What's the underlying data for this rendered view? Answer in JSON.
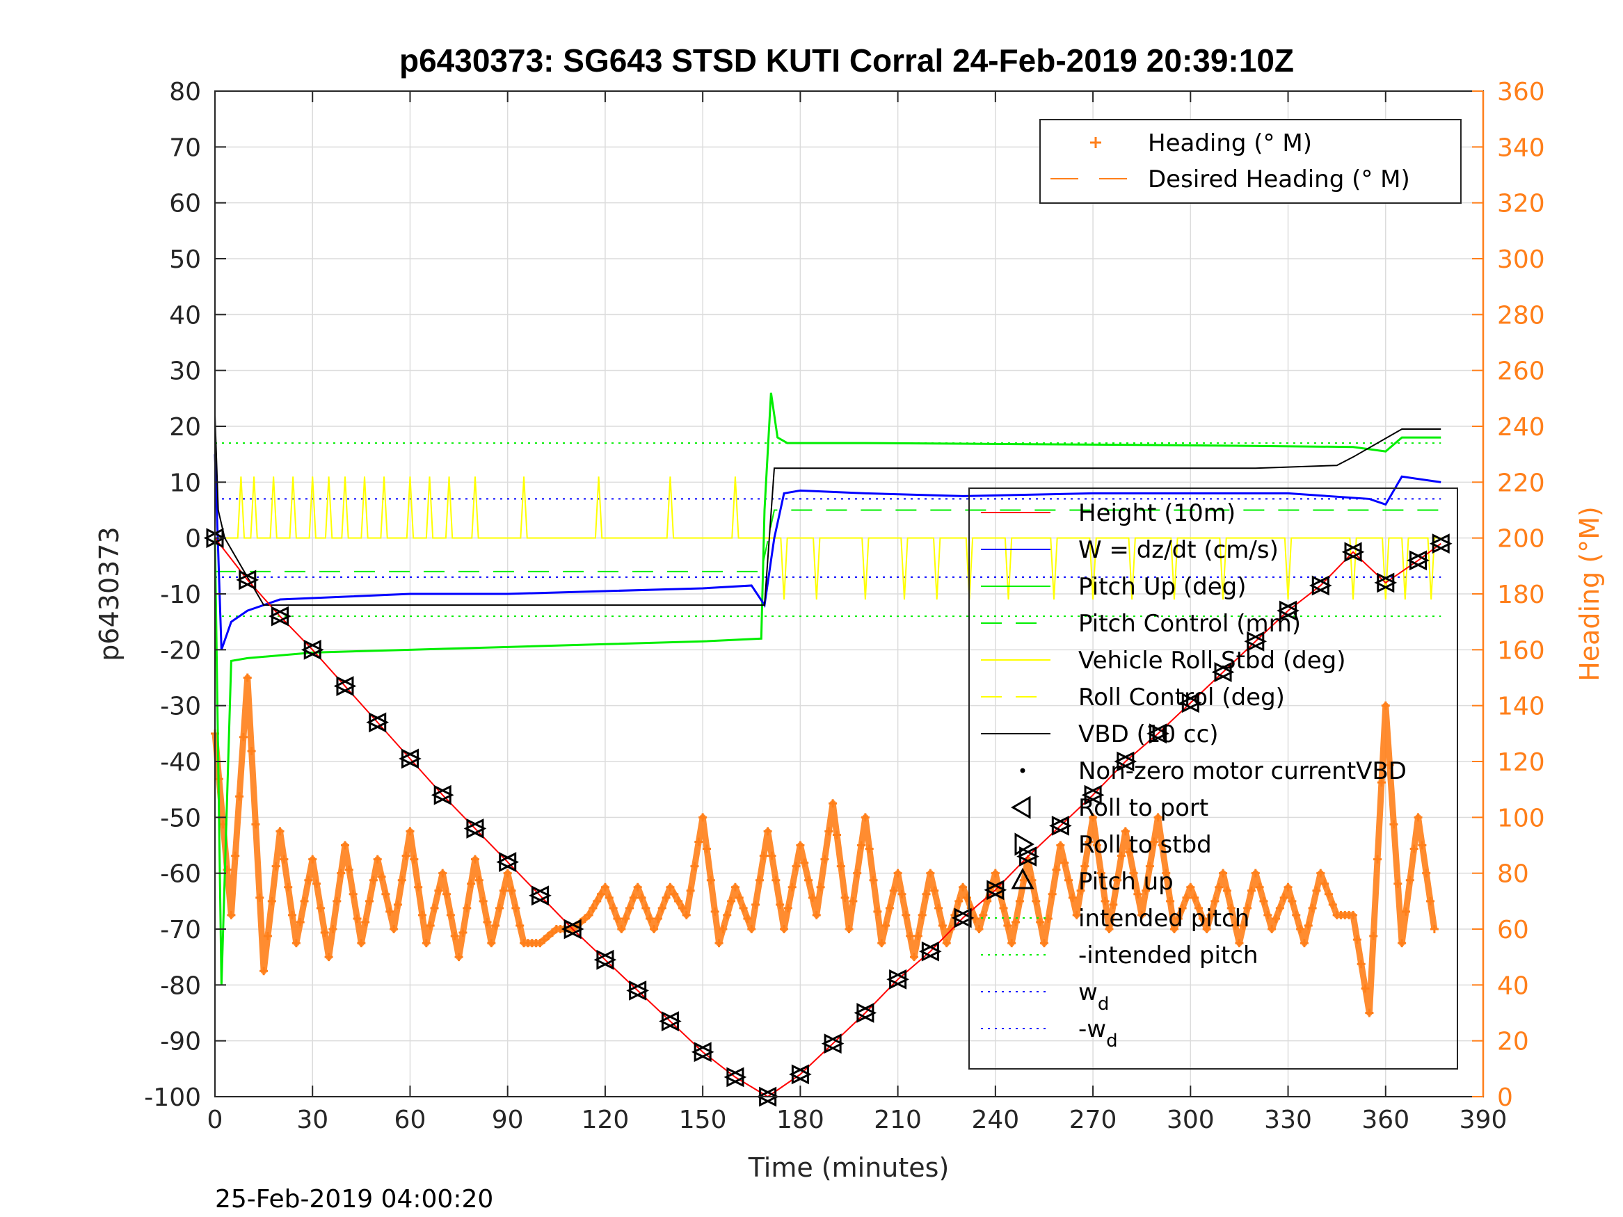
{
  "title": "p6430373: SG643 STSD KUTI Corral 24-Feb-2019 20:39:10Z",
  "footer_timestamp": "25-Feb-2019 04:00:20",
  "colors": {
    "height": "#ff0000",
    "w": "#0000ff",
    "pitch": "#00ee00",
    "roll": "#ffff00",
    "vbd": "#000000",
    "heading": "#ff7f1a"
  },
  "chart_data": {
    "type": "line",
    "title": "p6430373: SG643 STSD KUTI Corral 24-Feb-2019 20:39:10Z",
    "xlabel": "Time (minutes)",
    "ylabel": "p6430373",
    "ylabel_right": "Heading (°M)",
    "xlim": [
      0,
      390
    ],
    "ylim": [
      -100,
      80
    ],
    "ylim_right": [
      0,
      360
    ],
    "xticks": [
      "0",
      "30",
      "60",
      "90",
      "120",
      "150",
      "180",
      "210",
      "240",
      "270",
      "300",
      "330",
      "360",
      "390"
    ],
    "yticks": [
      "80",
      "70",
      "60",
      "50",
      "40",
      "30",
      "20",
      "10",
      "0",
      "-10",
      "-20",
      "-30",
      "-40",
      "-50",
      "-60",
      "-70",
      "-80",
      "-90",
      "-100"
    ],
    "yticks_right": [
      "360",
      "340",
      "320",
      "300",
      "280",
      "260",
      "240",
      "220",
      "200",
      "180",
      "160",
      "140",
      "120",
      "100",
      "80",
      "60",
      "40",
      "20",
      "0"
    ],
    "grid": true,
    "legend_top": [
      "Heading (° M)",
      "Desired Heading (° M)"
    ],
    "legend_bottom": [
      "Height (10m)",
      "W = dz/dt (cm/s)",
      "Pitch Up (deg)",
      "Pitch Control (mm)",
      "Vehicle Roll Stbd (deg)",
      "Roll Control (deg)",
      "VBD (10 cc)",
      "Non-zero motor currentVBD",
      "Roll to port",
      "Roll to stbd",
      "Pitch up",
      "intended pitch",
      "-intended pitch",
      "w",
      "-w"
    ],
    "legend_sub": "d",
    "series": [
      {
        "name": "Height (10m)",
        "x": [
          0,
          10,
          20,
          30,
          40,
          50,
          60,
          70,
          80,
          90,
          100,
          110,
          120,
          130,
          140,
          150,
          160,
          170,
          180,
          190,
          200,
          210,
          220,
          230,
          240,
          250,
          260,
          270,
          280,
          290,
          300,
          310,
          320,
          330,
          340,
          350,
          360,
          370,
          377
        ],
        "y": [
          0,
          -7.5,
          -14,
          -20,
          -26.5,
          -33,
          -39.5,
          -46,
          -52,
          -58,
          -64,
          -70,
          -75.5,
          -81,
          -86.5,
          -92,
          -96.5,
          -100,
          -96,
          -90.5,
          -85,
          -79,
          -74,
          -68,
          -63,
          -57,
          -51.5,
          -46,
          -40,
          -35,
          -29.5,
          -24,
          -18.5,
          -13,
          -8.5,
          -2.5,
          -8,
          -4,
          -1
        ]
      },
      {
        "name": "W = dz/dt (cm/s)",
        "x": [
          0,
          2,
          5,
          10,
          20,
          40,
          60,
          90,
          120,
          150,
          165,
          169,
          172,
          175,
          180,
          200,
          230,
          270,
          300,
          330,
          355,
          360,
          365,
          377
        ],
        "y": [
          15,
          -20,
          -15,
          -13,
          -11,
          -10.5,
          -10,
          -10,
          -9.5,
          -9,
          -8.5,
          -12,
          0,
          8,
          8.5,
          8,
          7.5,
          8,
          8,
          8,
          7,
          6,
          11,
          10
        ]
      },
      {
        "name": "Pitch Up (deg)",
        "x": [
          0,
          2,
          5,
          10,
          30,
          60,
          90,
          120,
          150,
          168,
          169,
          171,
          173,
          176,
          200,
          250,
          300,
          350,
          360,
          365,
          377
        ],
        "y": [
          0,
          -80,
          -22,
          -21.5,
          -20.5,
          -20,
          -19.5,
          -19,
          -18.5,
          -18,
          5,
          26,
          18,
          17,
          17,
          16.8,
          16.6,
          16.3,
          15.5,
          18,
          18
        ]
      },
      {
        "name": "VBD (10 cc)",
        "x": [
          0,
          1,
          3,
          15,
          60,
          100,
          168,
          169,
          172,
          250,
          320,
          345,
          350,
          365,
          377
        ],
        "y": [
          22,
          5,
          0,
          -12,
          -12,
          -12,
          -12,
          -12,
          12.5,
          12.5,
          12.5,
          13,
          14.5,
          19.5,
          19.5
        ]
      },
      {
        "name": "Heading (° M)",
        "x": [
          0,
          5,
          10,
          15,
          20,
          25,
          30,
          35,
          40,
          45,
          50,
          55,
          60,
          65,
          70,
          75,
          80,
          85,
          90,
          95,
          100,
          105,
          110,
          115,
          120,
          125,
          130,
          135,
          140,
          145,
          150,
          155,
          160,
          165,
          170,
          175,
          180,
          185,
          190,
          195,
          200,
          205,
          210,
          215,
          220,
          225,
          230,
          235,
          240,
          245,
          250,
          255,
          260,
          265,
          270,
          275,
          280,
          285,
          290,
          295,
          300,
          305,
          310,
          315,
          320,
          325,
          330,
          335,
          340,
          345,
          350,
          355,
          360,
          365,
          370,
          375
        ],
        "y": [
          130,
          65,
          150,
          45,
          95,
          55,
          85,
          50,
          90,
          55,
          85,
          60,
          95,
          55,
          80,
          50,
          85,
          55,
          80,
          55,
          55,
          60,
          60,
          65,
          75,
          60,
          75,
          60,
          75,
          65,
          100,
          55,
          75,
          60,
          95,
          60,
          90,
          65,
          105,
          60,
          100,
          55,
          80,
          50,
          80,
          55,
          75,
          60,
          80,
          55,
          85,
          55,
          90,
          65,
          100,
          60,
          95,
          65,
          100,
          60,
          75,
          60,
          80,
          55,
          80,
          60,
          75,
          55,
          80,
          65,
          65,
          30,
          140,
          55,
          100,
          60
        ]
      }
    ]
  }
}
